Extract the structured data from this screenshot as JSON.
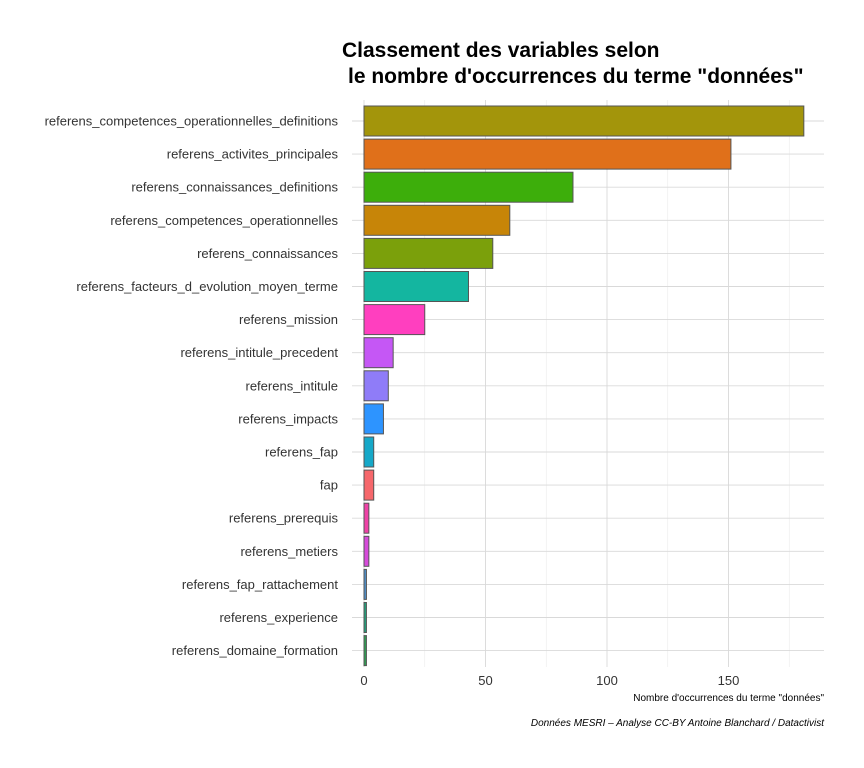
{
  "chart_data": {
    "type": "bar",
    "orientation": "horizontal",
    "title_lines": [
      "Classement des variables selon",
      "le nombre d'occurrences du terme \"données\""
    ],
    "xlabel": "Nombre d'occurrences du terme \"données\"",
    "ylabel": "",
    "caption": "Données MESRI – Analyse CC-BY Antoine Blanchard / Datactivist",
    "xlim": [
      0,
      190
    ],
    "xticks": [
      0,
      50,
      100,
      150
    ],
    "xtick_labels": [
      "0",
      "50",
      "100",
      "150"
    ],
    "grid": true,
    "legend": "none",
    "categories": [
      "referens_competences_operationnelles_definitions",
      "referens_activites_principales",
      "referens_connaissances_definitions",
      "referens_competences_operationnelles",
      "referens_connaissances",
      "referens_facteurs_d_evolution_moyen_terme",
      "referens_mission",
      "referens_intitule_precedent",
      "referens_intitule",
      "referens_impacts",
      "referens_fap",
      "fap",
      "referens_prerequis",
      "referens_metiers",
      "referens_fap_rattachement",
      "referens_experience",
      "referens_domaine_formation"
    ],
    "values": [
      181,
      151,
      86,
      60,
      53,
      43,
      25,
      12,
      10,
      8,
      4,
      4,
      2,
      2,
      1,
      1,
      1
    ],
    "colors": [
      "#A3950B",
      "#E0701A",
      "#3DAE0B",
      "#C78508",
      "#7BA00B",
      "#14B6A0",
      "#FF3FBF",
      "#C557F5",
      "#8F7CF8",
      "#2D94FF",
      "#16A8C8",
      "#F6676B",
      "#EE42A6",
      "#D64BDA",
      "#4F8EC9",
      "#23A07B",
      "#2E9E52"
    ]
  }
}
